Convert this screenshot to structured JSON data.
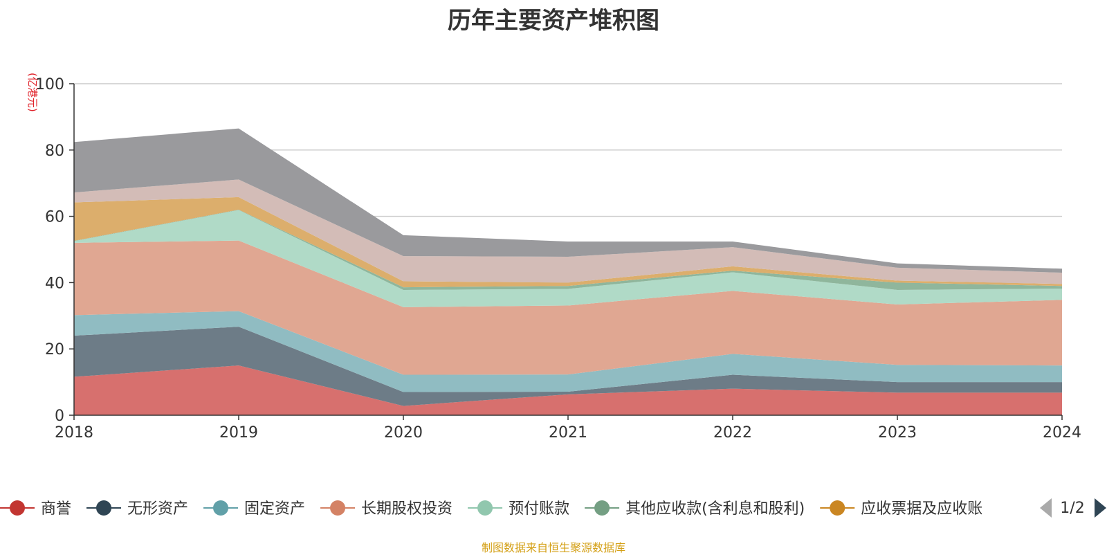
{
  "chart_data": {
    "type": "area",
    "title": "历年主要资产堆积图",
    "unit_label": "(亿港元)",
    "x": [
      "2018",
      "2019",
      "2020",
      "2021",
      "2022",
      "2023",
      "2024"
    ],
    "ylim": [
      0,
      100
    ],
    "yticks": [
      0,
      20,
      40,
      60,
      80,
      100
    ],
    "grid": true,
    "stacked": true,
    "series": [
      {
        "name": "商誉",
        "legend_color": "#c23531",
        "fill": "#d7706e",
        "values": [
          11.6,
          15.0,
          2.8,
          6.3,
          8.0,
          6.8,
          6.8
        ]
      },
      {
        "name": "无形资产",
        "legend_color": "#2f4554",
        "fill": "#6d7c87",
        "values": [
          12.4,
          11.7,
          4.2,
          0.8,
          4.2,
          3.2,
          3.2
        ]
      },
      {
        "name": "固定资产",
        "legend_color": "#61a0a8",
        "fill": "#90bcc2",
        "values": [
          6.2,
          4.7,
          5.2,
          5.2,
          6.3,
          5.2,
          5.0
        ]
      },
      {
        "name": "长期股权投资",
        "legend_color": "#d48265",
        "fill": "#e0a792",
        "values": [
          21.8,
          21.3,
          20.4,
          20.8,
          19.0,
          18.2,
          19.8
        ]
      },
      {
        "name": "预付账款",
        "legend_color": "#91c7ae",
        "fill": "#b0dac7",
        "values": [
          0.5,
          9.2,
          5.2,
          5.0,
          5.6,
          4.4,
          3.4
        ]
      },
      {
        "name": "其他应收款(含利息和股利)",
        "legend_color": "#749f83",
        "fill": "#8fb69c",
        "values": [
          0.1,
          0.1,
          0.8,
          0.9,
          0.5,
          2.2,
          0.8
        ]
      },
      {
        "name": "应收票据及应收账款",
        "legend_color": "#ca8622",
        "fill": "#dcae6c",
        "values": [
          11.6,
          3.8,
          1.8,
          1.0,
          1.3,
          0.6,
          0.6
        ]
      },
      {
        "name": "",
        "legend_color": "#bda29a",
        "fill": "#d3bcb7",
        "values": [
          3.0,
          5.3,
          7.6,
          7.8,
          5.8,
          3.9,
          3.4
        ]
      },
      {
        "name": "",
        "legend_color": "#6e7074",
        "fill": "#9a9a9d",
        "values": [
          15.2,
          15.4,
          6.3,
          4.6,
          1.7,
          1.3,
          1.2
        ]
      }
    ]
  },
  "legend": {
    "page": "1/2",
    "visible_items": [
      {
        "name": "商誉",
        "color": "#c23531"
      },
      {
        "name": "无形资产",
        "color": "#2f4554"
      },
      {
        "name": "固定资产",
        "color": "#61a0a8"
      },
      {
        "name": "长期股权投资",
        "color": "#d48265"
      },
      {
        "name": "预付账款",
        "color": "#91c7ae"
      },
      {
        "name": "其他应收款(含利息和股利)",
        "color": "#749f83"
      },
      {
        "name": "应收票据及应收账",
        "color": "#ca8622"
      }
    ],
    "prev_icon": "triangle-left-icon",
    "next_icon": "triangle-right-icon"
  },
  "source_note": "制图数据来自恒生聚源数据库"
}
